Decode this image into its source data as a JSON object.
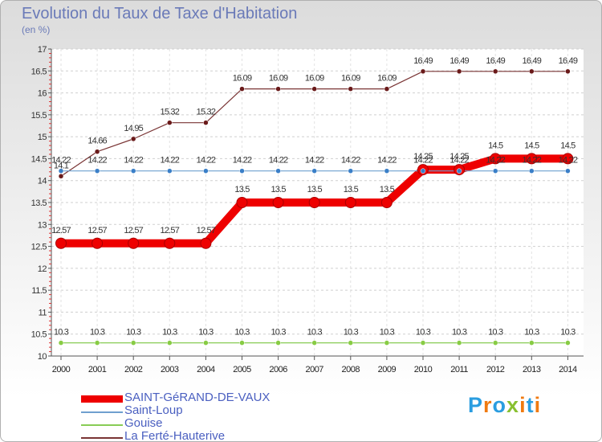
{
  "chart_data": {
    "type": "line",
    "title": "Evolution du Taux de Taxe d'Habitation",
    "subtitle": "(en %)",
    "x": [
      "2000",
      "2001",
      "2002",
      "2003",
      "2004",
      "2005",
      "2006",
      "2007",
      "2008",
      "2009",
      "2010",
      "2011",
      "2012",
      "2013",
      "2014"
    ],
    "ylim": [
      10,
      17
    ],
    "yticks": [
      "10",
      "10.5",
      "11",
      "11.5",
      "12",
      "12.5",
      "13",
      "13.5",
      "14",
      "14.5",
      "15",
      "15.5",
      "16",
      "16.5",
      "17"
    ],
    "series": [
      {
        "name": "SAINT-GéRAND-DE-VAUX",
        "color": "#ee0000",
        "values": [
          12.57,
          12.57,
          12.57,
          12.57,
          12.57,
          13.5,
          13.5,
          13.5,
          13.5,
          13.5,
          14.25,
          14.25,
          14.5,
          14.5,
          14.5
        ],
        "labels": [
          "12.57",
          "12.57",
          "12.57",
          "12.57",
          "12.57",
          "13.5",
          "13.5",
          "13.5",
          "13.5",
          "13.5",
          "14.25",
          "14.25",
          "14.5",
          "14.5",
          "14.5"
        ]
      },
      {
        "name": "Saint-Loup",
        "color": "#6fa0cf",
        "values": [
          14.22,
          14.22,
          14.22,
          14.22,
          14.22,
          14.22,
          14.22,
          14.22,
          14.22,
          14.22,
          14.22,
          14.22,
          14.22,
          14.22,
          14.22
        ],
        "labels": [
          "14.22",
          "14.22",
          "14.22",
          "14.22",
          "14.22",
          "14.22",
          "14.22",
          "14.22",
          "14.22",
          "14.22",
          "14.22",
          "14.22",
          "14.22",
          "14.22",
          "14.22"
        ]
      },
      {
        "name": "Gouise",
        "color": "#88cc55",
        "values": [
          10.3,
          10.3,
          10.3,
          10.3,
          10.3,
          10.3,
          10.3,
          10.3,
          10.3,
          10.3,
          10.3,
          10.3,
          10.3,
          10.3,
          10.3
        ],
        "labels": [
          "10.3",
          "10.3",
          "10.3",
          "10.3",
          "10.3",
          "10.3",
          "10.3",
          "10.3",
          "10.3",
          "10.3",
          "10.3",
          "10.3",
          "10.3",
          "10.3",
          "10.3"
        ]
      },
      {
        "name": "La Ferté-Hauterive",
        "color": "#7a3535",
        "values": [
          14.1,
          14.66,
          14.95,
          15.32,
          15.32,
          16.09,
          16.09,
          16.09,
          16.09,
          16.09,
          16.49,
          16.49,
          16.49,
          16.49,
          16.49
        ],
        "labels": [
          "14.1",
          "14.66",
          "14.95",
          "15.32",
          "15.32",
          "16.09",
          "16.09",
          "16.09",
          "16.09",
          "16.09",
          "16.49",
          "16.49",
          "16.49",
          "16.49",
          "16.49"
        ]
      }
    ]
  },
  "logo": {
    "text": "Proxiti",
    "colors": [
      "#2a9de0",
      "#f07a10",
      "#2a9de0",
      "#88c030",
      "#f07a10",
      "#2a9de0",
      "#f07a10"
    ]
  }
}
